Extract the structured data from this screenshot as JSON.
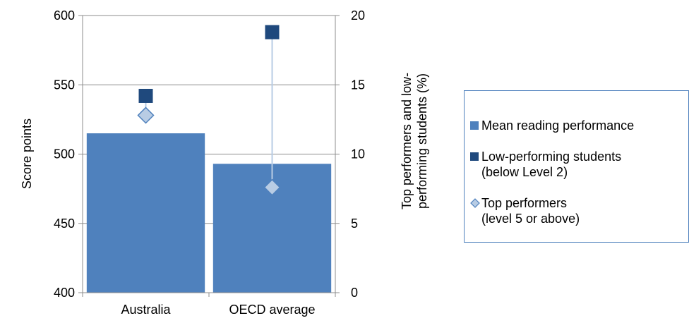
{
  "chart_data": {
    "type": "bar",
    "categories": [
      "Australia",
      "OECD average"
    ],
    "y_left": {
      "label": "Score points",
      "ylim": [
        400,
        600
      ],
      "ticks": [
        "400",
        "450",
        "500",
        "550",
        "600"
      ]
    },
    "y_right": {
      "label_line1": "Top performers and low-",
      "label_line2": "performing students (%)",
      "ylim": [
        0,
        20
      ],
      "ticks": [
        "0",
        "5",
        "10",
        "15",
        "20"
      ]
    },
    "series": [
      {
        "name": "Mean reading performance",
        "kind": "bar",
        "axis": "left",
        "values": [
          515,
          493
        ],
        "color": "#4f81bd"
      },
      {
        "name_line1": "Low-performing students",
        "name_line2": "(below Level 2)",
        "kind": "marker-square",
        "axis": "right",
        "values": [
          14.2,
          18.8
        ],
        "color": "#1f497d"
      },
      {
        "name_line1": "Top performers",
        "name_line2": "(level 5 or above)",
        "kind": "marker-diamond",
        "axis": "right",
        "values": [
          12.8,
          7.6
        ],
        "color": "#b8cce4"
      }
    ],
    "grid": true,
    "legend_position": "right"
  }
}
